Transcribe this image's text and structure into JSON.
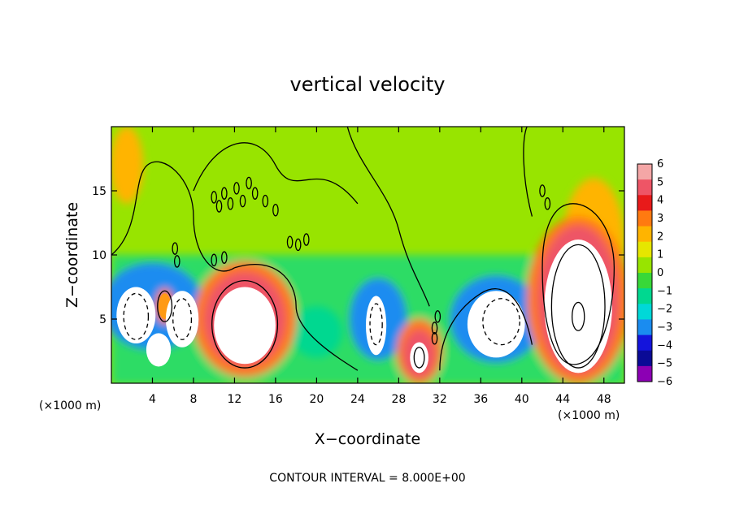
{
  "chart_data": {
    "type": "heatmap",
    "title": "vertical velocity",
    "xlabel": "X−coordinate",
    "ylabel": "Z−coordinate",
    "x_unit_label": "(×1000 m)",
    "x_unit_label_right": "(×1000 m)",
    "footer": "CONTOUR INTERVAL = 8.000E+00",
    "xlim": [
      0,
      50
    ],
    "ylim": [
      0,
      20
    ],
    "x_ticks": [
      4,
      8,
      12,
      16,
      20,
      24,
      28,
      32,
      36,
      40,
      44,
      48
    ],
    "y_ticks": [
      5,
      10,
      15
    ],
    "colorbar": {
      "levels": [
        6,
        5,
        4,
        3,
        2,
        1,
        0,
        -1,
        -2,
        -3,
        -4,
        -5,
        -6
      ],
      "labels": [
        "6",
        "5",
        "4",
        "3",
        "2",
        "1",
        "0",
        "−1",
        "−2",
        "−3",
        "−4",
        "−5",
        "−6"
      ],
      "colors": [
        "#f4a6a6",
        "#ee5566",
        "#e81a1a",
        "#ff7a10",
        "#ffb400",
        "#e6e600",
        "#98e400",
        "#38d838",
        "#00d890",
        "#00d8d8",
        "#1a8cf0",
        "#1414dc",
        "#0a0a96",
        "#8c00b4"
      ]
    },
    "background_value": 0,
    "features": [
      {
        "name": "updraft core",
        "x": 13,
        "z": 4.5,
        "value": 6
      },
      {
        "name": "updraft core",
        "x": 45.5,
        "z": 6,
        "value": 6
      },
      {
        "name": "updraft core",
        "x": 30,
        "z": 2,
        "value": 6
      },
      {
        "name": "updraft core",
        "x": 5.2,
        "z": 6,
        "value": 3
      },
      {
        "name": "downdraft core",
        "x": 2.5,
        "z": 5,
        "value": -6
      },
      {
        "name": "downdraft core",
        "x": 6.8,
        "z": 4.5,
        "value": -6
      },
      {
        "name": "downdraft core",
        "x": 25.8,
        "z": 4.5,
        "value": -6
      },
      {
        "name": "downdraft core",
        "x": 37.5,
        "z": 4.5,
        "value": -6
      }
    ]
  }
}
